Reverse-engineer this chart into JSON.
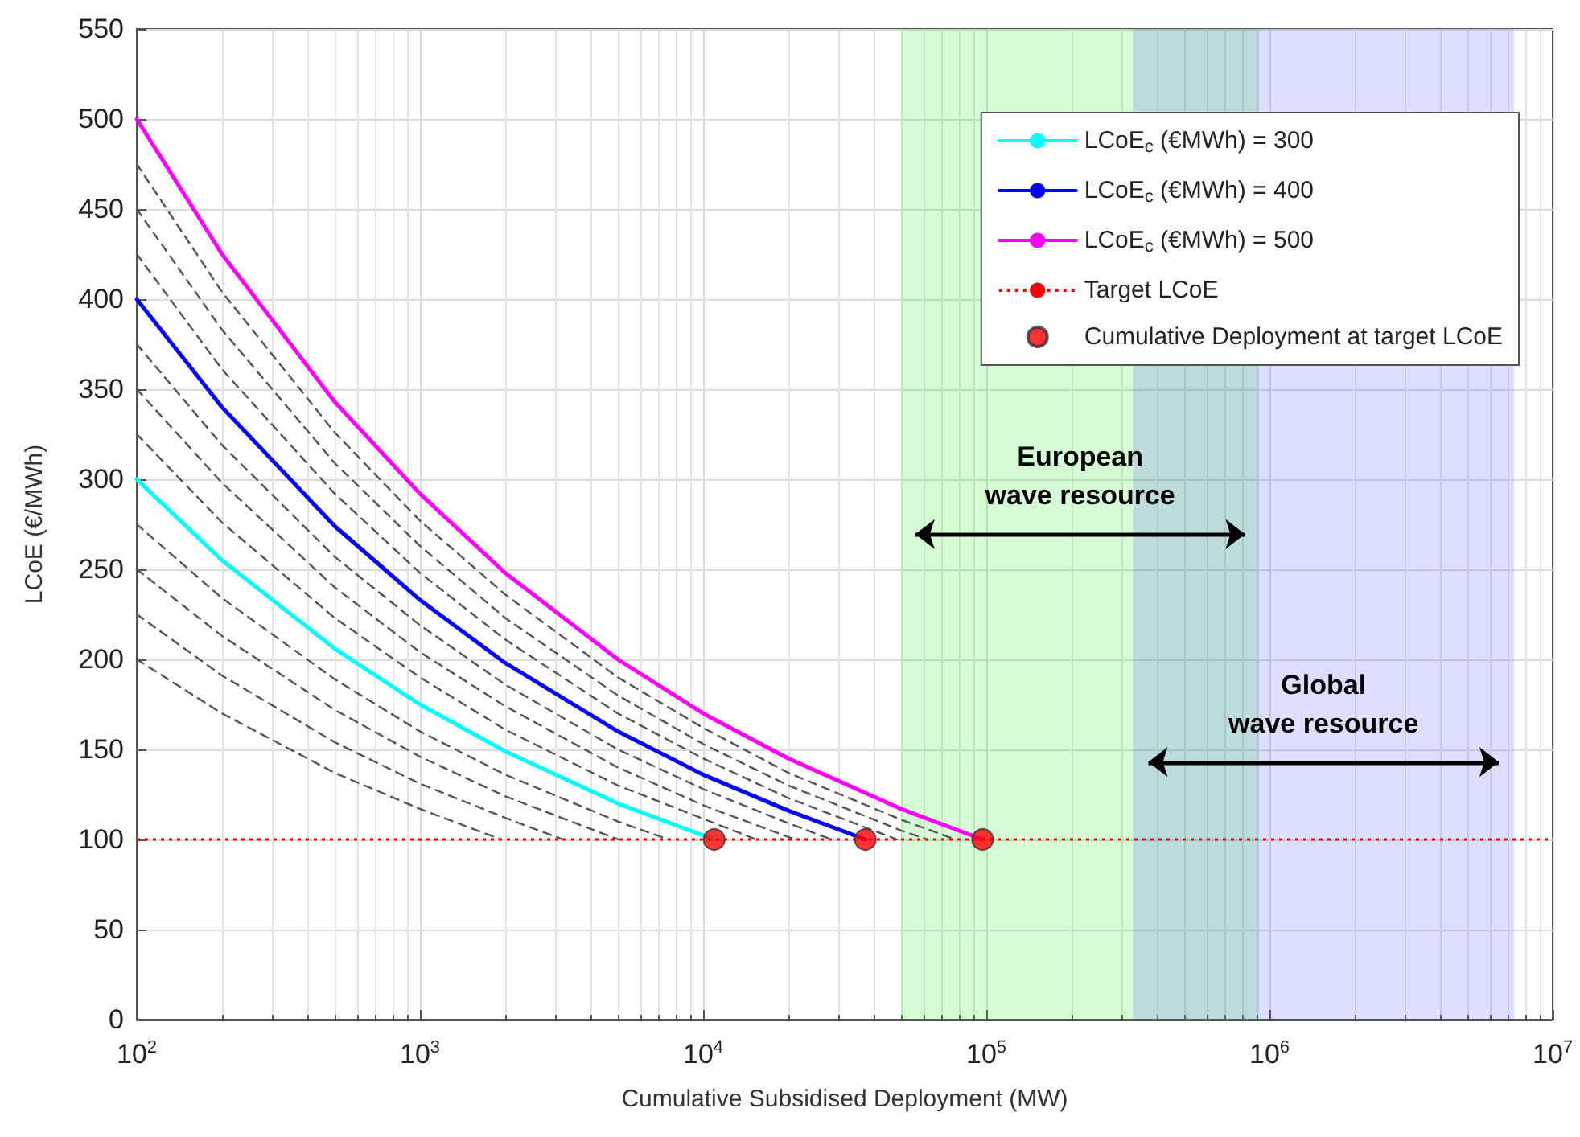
{
  "chart_data": {
    "type": "line",
    "xlabel": "Cumulative Subsidised Deployment (MW)",
    "ylabel": "LCoE (€/MWh)",
    "log": "x",
    "xlim": [
      100,
      10000000
    ],
    "xticks": [
      {
        "value": 100,
        "label": "10$^{2}$"
      },
      {
        "value": 1000,
        "label": "10$^{3}$"
      },
      {
        "value": 10000,
        "label": "10$^{4}$"
      },
      {
        "value": 100000,
        "label": "10$^{5}$"
      },
      {
        "value": 1000000,
        "label": "10$^{6}$"
      },
      {
        "value": 10000000,
        "label": "10$^{7}$"
      }
    ],
    "ylim": [
      0,
      550
    ],
    "yticks": [
      0,
      50,
      100,
      150,
      200,
      250,
      300,
      350,
      400,
      450,
      500,
      550
    ],
    "grid": true,
    "legend": "top right",
    "series": [
      {
        "color": "#555555",
        "line_style": "dashed",
        "marker": "none",
        "x": [
          100,
          200,
          500,
          1000,
          1934
        ],
        "values": [
          200,
          170,
          137,
          117,
          100
        ]
      },
      {
        "color": "#555555",
        "line_style": "dashed",
        "marker": "none",
        "x": [
          100,
          200,
          500,
          1000,
          2000,
          3200
        ],
        "values": [
          225,
          191,
          154,
          131,
          112,
          100
        ]
      },
      {
        "color": "#555555",
        "line_style": "dashed",
        "marker": "none",
        "x": [
          100,
          200,
          500,
          1000,
          2000,
          5020
        ],
        "values": [
          250,
          213,
          172,
          146,
          124,
          100
        ]
      },
      {
        "color": "#555555",
        "line_style": "dashed",
        "marker": "none",
        "x": [
          100,
          200,
          500,
          1000,
          2000,
          5000,
          7540
        ],
        "values": [
          275,
          234,
          189,
          160,
          136,
          110,
          100
        ]
      },
      {
        "color": "#555555",
        "line_style": "dashed",
        "marker": "none",
        "x": [
          100,
          200,
          500,
          1000,
          2000,
          5000,
          15400
        ],
        "values": [
          325,
          276,
          223,
          190,
          161,
          130,
          100
        ]
      },
      {
        "color": "#555555",
        "line_style": "dashed",
        "marker": "none",
        "x": [
          100,
          200,
          500,
          1000,
          2000,
          5000,
          10000,
          21100
        ],
        "values": [
          350,
          298,
          240,
          204,
          174,
          140,
          119,
          100
        ]
      },
      {
        "color": "#555555",
        "line_style": "dashed",
        "marker": "none",
        "x": [
          100,
          200,
          500,
          1000,
          2000,
          5000,
          10000,
          20000,
          28400
        ],
        "values": [
          375,
          319,
          257,
          219,
          186,
          150,
          128,
          109,
          100
        ]
      },
      {
        "color": "#555555",
        "line_style": "dashed",
        "marker": "none",
        "x": [
          100,
          200,
          500,
          1000,
          2000,
          5000,
          10000,
          20000,
          48400
        ],
        "values": [
          425,
          361,
          292,
          248,
          211,
          170,
          145,
          123,
          100
        ]
      },
      {
        "color": "#555555",
        "line_style": "dashed",
        "marker": "none",
        "x": [
          100,
          200,
          500,
          1000,
          2000,
          5000,
          10000,
          20000,
          50000,
          61900
        ],
        "values": [
          450,
          383,
          309,
          263,
          223,
          180,
          153,
          130,
          105,
          100
        ]
      },
      {
        "color": "#555555",
        "line_style": "dashed",
        "marker": "none",
        "x": [
          100,
          200,
          500,
          1000,
          2000,
          5000,
          10000,
          20000,
          50000,
          77900
        ],
        "values": [
          475,
          404,
          326,
          277,
          236,
          190,
          162,
          137,
          111,
          100
        ]
      },
      {
        "name": "LCoE$_{c}$ (€MWh) = 300",
        "color": "#00ffff",
        "line_style": "solid",
        "marker": "none",
        "x": [
          100,
          200,
          500,
          1000,
          2000,
          5000,
          10940
        ],
        "values": [
          300,
          255,
          206,
          175,
          149,
          120,
          100
        ]
      },
      {
        "name": "LCoE$_{c}$ (€MWh) = 400",
        "color": "#0000ff",
        "line_style": "solid",
        "marker": "none",
        "x": [
          100,
          200,
          500,
          1000,
          2000,
          5000,
          10000,
          20000,
          37400
        ],
        "values": [
          400,
          340,
          274,
          233,
          198,
          160,
          136,
          116,
          100
        ]
      },
      {
        "name": "LCoE$_{c}$ (€MWh) = 500",
        "color": "#ff00ff",
        "line_style": "solid",
        "marker": "none",
        "x": [
          100,
          200,
          500,
          1000,
          2000,
          5000,
          10000,
          20000,
          50000,
          97000
        ],
        "values": [
          500,
          425,
          343,
          292,
          248,
          200,
          170,
          145,
          117,
          100
        ]
      },
      {
        "name": "Cumulative Deployment at target LCoE",
        "type": "scatter",
        "color": "#ff0000",
        "marker": "circle",
        "x": [
          10940,
          37400,
          97000
        ],
        "values": [
          100,
          100,
          100
        ]
      }
    ],
    "ref_lines": [
      {
        "axis": "y",
        "value": 100,
        "label": "Target LCoE",
        "color": "#ff0000",
        "line_style": "dotted"
      }
    ],
    "bands": [
      {
        "axis": "x",
        "from": 50000,
        "to": 920000,
        "label": "European\nwave resource",
        "color": "#00ee00"
      },
      {
        "axis": "x",
        "from": 330000,
        "to": 7300000,
        "label": "Global\nwave resource",
        "color": "#3333ff"
      }
    ]
  }
}
